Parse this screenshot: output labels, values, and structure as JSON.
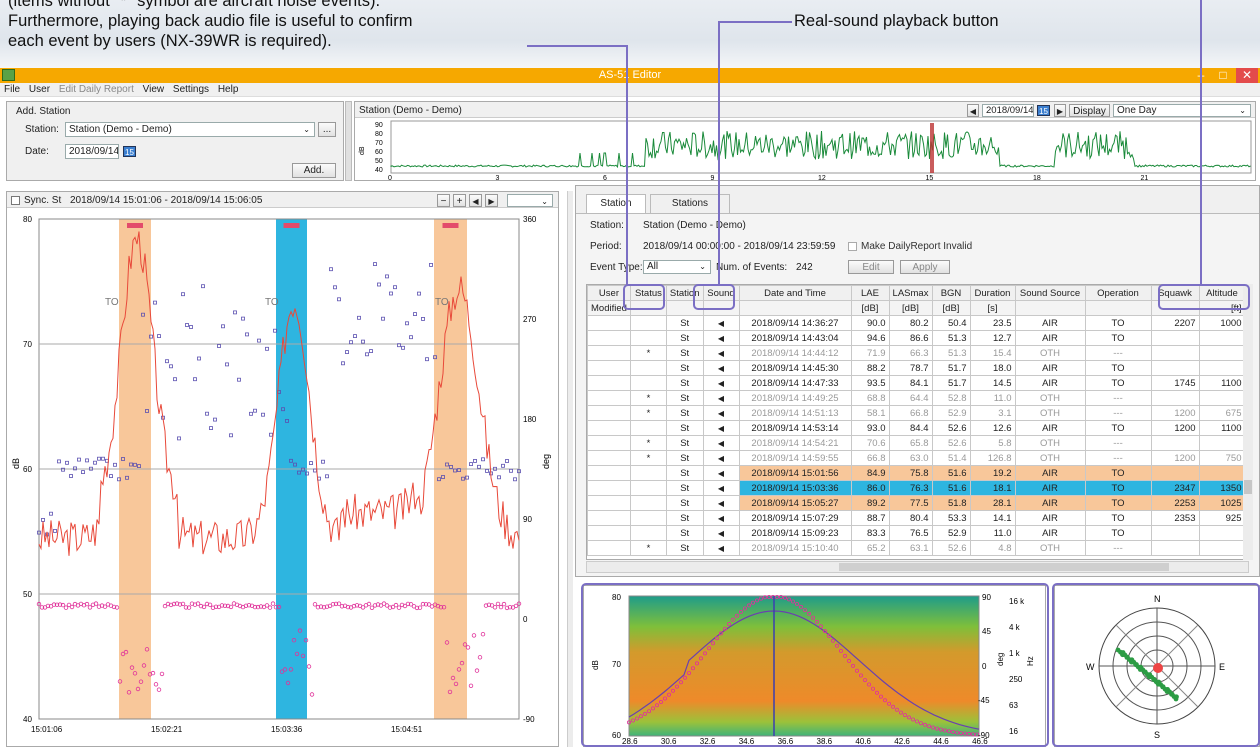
{
  "annotations": {
    "line1": "(items without \"*\" symbol are aircraft noise events).",
    "line2": "Furthermore, playing back audio file is useful to confirm",
    "line3": "each event by users (NX-39WR is required).",
    "playback_label": "Real-sound playback button"
  },
  "window": {
    "title": "AS-51 Editor",
    "minimize": "–",
    "maximize": "□",
    "close": "✕"
  },
  "menu": [
    "File",
    "User",
    "Edit Daily Report",
    "View",
    "Settings",
    "Help"
  ],
  "add_station": {
    "title": "Add. Station",
    "station_label": "Station:",
    "station_value": "Station (Demo - Demo)",
    "browse": "...",
    "date_label": "Date:",
    "date_value": "2018/09/14",
    "cal": "15",
    "add_button": "Add."
  },
  "overview": {
    "title": "Station (Demo - Demo)",
    "date": "2018/09/14",
    "cal": "15",
    "prev": "◀",
    "next": "▶",
    "display_button": "Display",
    "range": "One Day",
    "ylabel": "dB",
    "yticks": [
      "90",
      "80",
      "70",
      "60",
      "50",
      "40"
    ],
    "xticks": [
      "0",
      "3",
      "6",
      "9",
      "12",
      "15",
      "18",
      "21"
    ]
  },
  "sync": {
    "checkbox_label": "Sync. St",
    "period": "2018/09/14 15:01:06 - 2018/09/14 15:06:05",
    "buttons": [
      "−",
      "+",
      "◀",
      "▶"
    ]
  },
  "chart_data": {
    "type": "scatter",
    "title": "",
    "ylabel": "dB",
    "y2label": "deg",
    "ylim": [
      40,
      80
    ],
    "y2lim": [
      -90,
      360
    ],
    "yticks": [
      40,
      50,
      60,
      70,
      80
    ],
    "y2ticks": [
      -90,
      0,
      90,
      180,
      270,
      360
    ],
    "xticks": [
      "15:01:06",
      "15:02:21",
      "15:03:36",
      "15:04:51"
    ],
    "event_labels": [
      "TO",
      "TO",
      "TO"
    ],
    "colors": {
      "level": "#e8493a",
      "azimuth": "#5a4fb0",
      "elevation": "#e0329a",
      "takeoff": "#f8c79a",
      "selected": "#2eb5e0"
    }
  },
  "tabs": [
    "Station",
    "Stations"
  ],
  "info": {
    "station_label": "Station:",
    "station_value": "Station (Demo - Demo)",
    "period_label": "Period:",
    "period_value": "2018/09/14 00:00:00 - 2018/09/14 23:59:59",
    "invalid_label": "Make DailyReport Invalid",
    "event_type_label": "Event Type:",
    "event_type_value": "All",
    "num_events_label": "Num. of Events:",
    "num_events_value": "242",
    "edit_button": "Edit",
    "apply_button": "Apply"
  },
  "table": {
    "headers": [
      "User",
      "Status",
      "Station",
      "Sound",
      "Date and Time",
      "LAE",
      "LASmax",
      "BGN",
      "Duration",
      "Sound Source",
      "Operation",
      "Squawk",
      "Altitude"
    ],
    "units": [
      "Modified",
      "",
      "",
      "",
      "",
      "[dB]",
      "[dB]",
      "[dB]",
      "[s]",
      "",
      "",
      "",
      "[ft]"
    ],
    "rows": [
      {
        "status": "",
        "station": "St",
        "datetime": "2018/09/14 14:36:27",
        "lae": "90.0",
        "lasmax": "80.2",
        "bgn": "50.4",
        "duration": "23.5",
        "source": "AIR",
        "operation": "TO",
        "squawk": "2207",
        "altitude": "1000",
        "style": "n"
      },
      {
        "status": "",
        "station": "St",
        "datetime": "2018/09/14 14:43:04",
        "lae": "94.6",
        "lasmax": "86.6",
        "bgn": "51.3",
        "duration": "12.7",
        "source": "AIR",
        "operation": "TO",
        "squawk": "",
        "altitude": "",
        "style": "n"
      },
      {
        "status": "*",
        "station": "St",
        "datetime": "2018/09/14 14:44:12",
        "lae": "71.9",
        "lasmax": "66.3",
        "bgn": "51.3",
        "duration": "15.4",
        "source": "OTH",
        "operation": "---",
        "squawk": "",
        "altitude": "",
        "style": "g"
      },
      {
        "status": "",
        "station": "St",
        "datetime": "2018/09/14 14:45:30",
        "lae": "88.2",
        "lasmax": "78.7",
        "bgn": "51.7",
        "duration": "18.0",
        "source": "AIR",
        "operation": "TO",
        "squawk": "",
        "altitude": "",
        "style": "n"
      },
      {
        "status": "",
        "station": "St",
        "datetime": "2018/09/14 14:47:33",
        "lae": "93.5",
        "lasmax": "84.1",
        "bgn": "51.7",
        "duration": "14.5",
        "source": "AIR",
        "operation": "TO",
        "squawk": "1745",
        "altitude": "1100",
        "style": "n"
      },
      {
        "status": "*",
        "station": "St",
        "datetime": "2018/09/14 14:49:25",
        "lae": "68.8",
        "lasmax": "64.4",
        "bgn": "52.8",
        "duration": "11.0",
        "source": "OTH",
        "operation": "---",
        "squawk": "",
        "altitude": "",
        "style": "g"
      },
      {
        "status": "*",
        "station": "St",
        "datetime": "2018/09/14 14:51:13",
        "lae": "58.1",
        "lasmax": "66.8",
        "bgn": "52.9",
        "duration": "3.1",
        "source": "OTH",
        "operation": "---",
        "squawk": "1200",
        "altitude": "675",
        "style": "g"
      },
      {
        "status": "",
        "station": "St",
        "datetime": "2018/09/14 14:53:14",
        "lae": "93.0",
        "lasmax": "84.4",
        "bgn": "52.6",
        "duration": "12.6",
        "source": "AIR",
        "operation": "TO",
        "squawk": "1200",
        "altitude": "1100",
        "style": "n"
      },
      {
        "status": "*",
        "station": "St",
        "datetime": "2018/09/14 14:54:21",
        "lae": "70.6",
        "lasmax": "65.8",
        "bgn": "52.6",
        "duration": "5.8",
        "source": "OTH",
        "operation": "---",
        "squawk": "",
        "altitude": "",
        "style": "g"
      },
      {
        "status": "*",
        "station": "St",
        "datetime": "2018/09/14 14:59:55",
        "lae": "66.8",
        "lasmax": "63.0",
        "bgn": "51.4",
        "duration": "126.8",
        "source": "OTH",
        "operation": "---",
        "squawk": "1200",
        "altitude": "750",
        "style": "g"
      },
      {
        "status": "",
        "station": "St",
        "datetime": "2018/09/14 15:01:56",
        "lae": "84.9",
        "lasmax": "75.8",
        "bgn": "51.6",
        "duration": "19.2",
        "source": "AIR",
        "operation": "TO",
        "squawk": "",
        "altitude": "",
        "style": "o"
      },
      {
        "status": "",
        "station": "St",
        "datetime": "2018/09/14 15:03:36",
        "lae": "86.0",
        "lasmax": "76.3",
        "bgn": "51.6",
        "duration": "18.1",
        "source": "AIR",
        "operation": "TO",
        "squawk": "2347",
        "altitude": "1350",
        "style": "b"
      },
      {
        "status": "",
        "station": "St",
        "datetime": "2018/09/14 15:05:27",
        "lae": "89.2",
        "lasmax": "77.5",
        "bgn": "51.8",
        "duration": "28.1",
        "source": "AIR",
        "operation": "TO",
        "squawk": "2253",
        "altitude": "1025",
        "style": "o"
      },
      {
        "status": "",
        "station": "St",
        "datetime": "2018/09/14 15:07:29",
        "lae": "88.7",
        "lasmax": "80.4",
        "bgn": "53.3",
        "duration": "14.1",
        "source": "AIR",
        "operation": "TO",
        "squawk": "2353",
        "altitude": "925",
        "style": "n"
      },
      {
        "status": "",
        "station": "St",
        "datetime": "2018/09/14 15:09:23",
        "lae": "83.3",
        "lasmax": "76.5",
        "bgn": "52.9",
        "duration": "11.0",
        "source": "AIR",
        "operation": "TO",
        "squawk": "",
        "altitude": "",
        "style": "n"
      },
      {
        "status": "*",
        "station": "St",
        "datetime": "2018/09/14 15:10:40",
        "lae": "65.2",
        "lasmax": "63.1",
        "bgn": "52.6",
        "duration": "4.8",
        "source": "OTH",
        "operation": "---",
        "squawk": "",
        "altitude": "",
        "style": "g"
      }
    ]
  },
  "spectrum": {
    "ylabel": "dB",
    "yticks": [
      "80",
      "70",
      "60"
    ],
    "deg_label": "deg",
    "degticks": [
      "90",
      "45",
      "0",
      "-45",
      "-90"
    ],
    "hz_label": "Hz",
    "hzticks": [
      "16 k",
      "4 k",
      "1 k",
      "250",
      "63",
      "16"
    ],
    "xticks": [
      "28.6",
      "30.6",
      "32.6",
      "34.6",
      "36.6",
      "38.6",
      "40.6",
      "42.6",
      "44.6",
      "46.6"
    ]
  },
  "compass": {
    "n": "N",
    "s": "S",
    "e": "E",
    "w": "W"
  }
}
